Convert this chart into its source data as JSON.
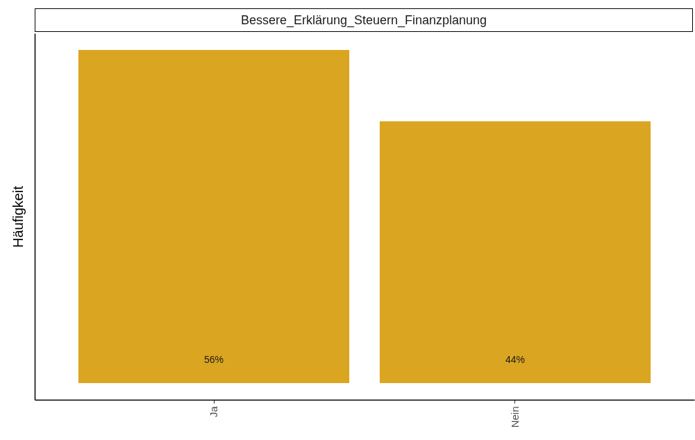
{
  "chart_data": {
    "type": "bar",
    "title": "Bessere_Erklärung_Steuern_Finanzplanung",
    "ylabel": "Häufigkeit",
    "categories": [
      "Ja",
      "Nein"
    ],
    "values": [
      56,
      44
    ],
    "color": "#daa520",
    "value_labels": [
      "56%",
      "44%"
    ],
    "tick_labels": "x",
    "grid": false
  }
}
